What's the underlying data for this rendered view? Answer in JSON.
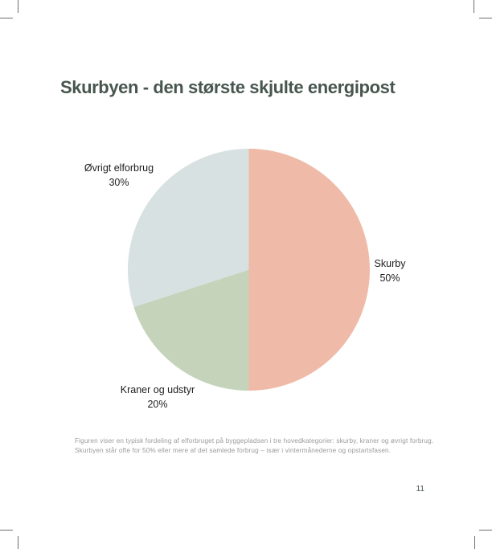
{
  "page": {
    "title": "Skurbyen - den største skjulte energipost",
    "caption": "Figuren viser en typisk fordeling af elforbruget på byggepladsen i tre hovedkategorier: skurby, kraner og øvrigt forbrug. Skurbyen står ofte for 50% eller mere af det samlede forbrug – især i vintermånederne og opstartsfasen.",
    "page_number": "11"
  },
  "chart_data": {
    "type": "pie",
    "title": "Skurbyen - den største skjulte energipost",
    "start_angle_deg": 0,
    "direction": "clockwise",
    "legend": "none",
    "labels_position": "outside",
    "slices": [
      {
        "label": "Skurby",
        "value": 50,
        "pct_label": "50%",
        "color": "#efbaa7"
      },
      {
        "label": "Kraner og udstyr",
        "value": 20,
        "pct_label": "20%",
        "color": "#c5d3bb"
      },
      {
        "label": "Øvrigt elforbrug",
        "value": 30,
        "pct_label": "30%",
        "color": "#d8e1e1"
      }
    ]
  },
  "colors": {
    "title_text": "#47564e",
    "label_text": "#1d1d1d",
    "caption_text": "#9b9b9b",
    "crop_mark": "#6e6e6e",
    "background": "#ffffff"
  }
}
